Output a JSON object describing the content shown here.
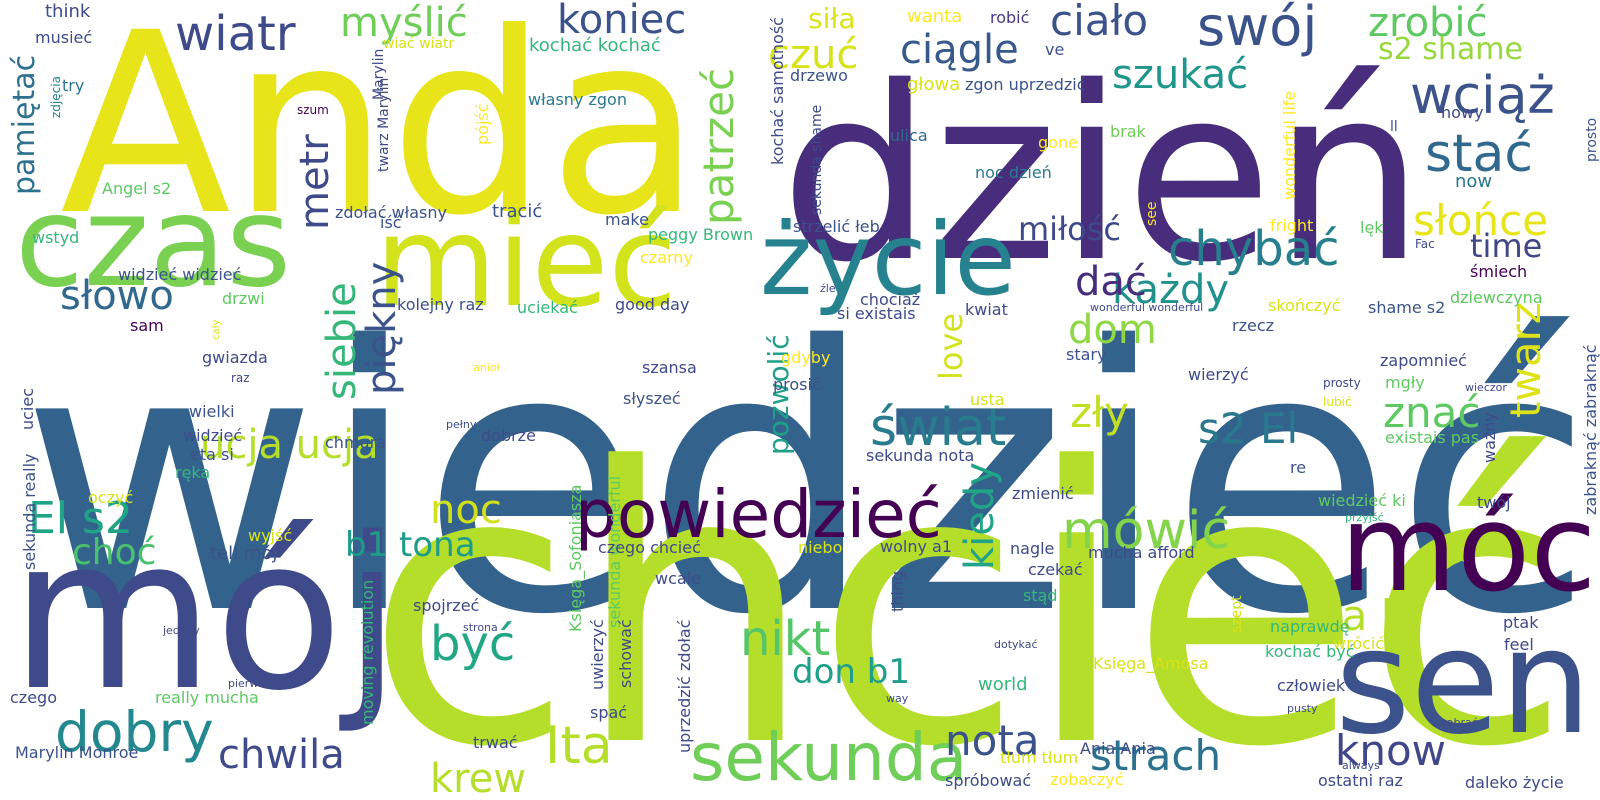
{
  "words": [
    {
      "t": "wiedzieć",
      "c": "#33638d"
    },
    {
      "t": "chcieć",
      "c": "#b5de2b"
    },
    {
      "t": "dzień",
      "c": "#472d7b"
    },
    {
      "t": "Anda",
      "c": "#e7e419"
    },
    {
      "t": "mój",
      "c": "#3e4a89"
    },
    {
      "t": "czas",
      "c": "#7ad151"
    },
    {
      "t": "mieć",
      "c": "#d2e21b"
    },
    {
      "t": "życie",
      "c": "#26828e"
    },
    {
      "t": "sen",
      "c": "#3b528b"
    },
    {
      "t": "móc",
      "c": "#440154"
    },
    {
      "t": "powiedzieć",
      "c": "#440154"
    },
    {
      "t": "sekunda",
      "c": "#6ece58"
    },
    {
      "t": "wiatr",
      "c": "#3e4a89"
    },
    {
      "t": "myślić",
      "c": "#6ece58"
    },
    {
      "t": "koniec",
      "c": "#3b528b"
    },
    {
      "t": "swój",
      "c": "#3b528b"
    },
    {
      "t": "zrobić",
      "c": "#5ec962"
    },
    {
      "t": "wciąż",
      "c": "#3b528b"
    },
    {
      "t": "stać",
      "c": "#31688e"
    },
    {
      "t": "słońce",
      "c": "#e7e419"
    },
    {
      "t": "twarz",
      "c": "#dde318"
    },
    {
      "t": "patrzeć",
      "c": "#7ad151"
    },
    {
      "t": "czuć",
      "c": "#d8e219"
    },
    {
      "t": "ciągle",
      "c": "#38598c"
    },
    {
      "t": "ciało",
      "c": "#3b528b"
    },
    {
      "t": "szukać",
      "c": "#1f968b"
    },
    {
      "t": "chybać",
      "c": "#277f8e"
    },
    {
      "t": "każdy",
      "c": "#21918c"
    },
    {
      "t": "time",
      "c": "#404688"
    },
    {
      "t": "miłość",
      "c": "#3e4a89"
    },
    {
      "t": "dać",
      "c": "#472d7b"
    },
    {
      "t": "świat",
      "c": "#287c8e"
    },
    {
      "t": "dom",
      "c": "#8fd744"
    },
    {
      "t": "zły",
      "c": "#c2df23"
    },
    {
      "t": "s2 El",
      "c": "#2a788e"
    },
    {
      "t": "znać",
      "c": "#5ec962"
    },
    {
      "t": "mówić",
      "c": "#84d44b"
    },
    {
      "t": "kiedy",
      "c": "#20a386"
    },
    {
      "t": "metr",
      "c": "#3e4a89"
    },
    {
      "t": "siebie",
      "c": "#35b779"
    },
    {
      "t": "piękny",
      "c": "#3b528b"
    },
    {
      "t": "słowo",
      "c": "#31688e"
    },
    {
      "t": "El s2",
      "c": "#20a486"
    },
    {
      "t": "ucja ucja",
      "c": "#b5de2b"
    },
    {
      "t": "noc",
      "c": "#d0e11c"
    },
    {
      "t": "być",
      "c": "#22a785"
    },
    {
      "t": "b1 tona",
      "c": "#1e9c89"
    },
    {
      "t": "choć",
      "c": "#4ac16d"
    },
    {
      "t": "dobry",
      "c": "#23898e"
    },
    {
      "t": "chwila",
      "c": "#3e4a89"
    },
    {
      "t": "krew",
      "c": "#b5de2b"
    },
    {
      "t": "Ita",
      "c": "#b5de2b"
    },
    {
      "t": "nikt",
      "c": "#54c568"
    },
    {
      "t": "don b1",
      "c": "#1f9e89"
    },
    {
      "t": "nota",
      "c": "#3b528b"
    },
    {
      "t": "strach",
      "c": "#2c728e"
    },
    {
      "t": "know",
      "c": "#404688"
    },
    {
      "t": "la la",
      "c": "#b5de2b"
    },
    {
      "t": "love",
      "c": "#d2e21b"
    },
    {
      "t": "pozwolić",
      "c": "#1fa088"
    },
    {
      "t": "pamiętać",
      "c": "#2d718e"
    },
    {
      "t": "s2 shame",
      "c": "#98d83e"
    },
    {
      "t": "siła",
      "c": "#dde318"
    },
    {
      "t": "wanta",
      "c": "#fde725"
    },
    {
      "t": "robić",
      "c": "#443a83"
    },
    {
      "t": "ve",
      "c": "#3b528b"
    },
    {
      "t": "think",
      "c": "#3e4a89"
    },
    {
      "t": "musieć",
      "c": "#3e4a89"
    },
    {
      "t": "try",
      "c": "#2a788e"
    },
    {
      "t": "zdjęcia",
      "c": "#26828e"
    },
    {
      "t": "wiać wiatr",
      "c": "#d8e219"
    },
    {
      "t": "Marylin",
      "c": "#3e4a89"
    },
    {
      "t": "kochać kochać",
      "c": "#35b779"
    },
    {
      "t": "kochać samotność",
      "c": "#3e4a89"
    },
    {
      "t": "drzewo",
      "c": "#3b528b"
    },
    {
      "t": "głowa",
      "c": "#d8e219"
    },
    {
      "t": "zgon uprzedzić",
      "c": "#3b528b"
    },
    {
      "t": "własny zgon",
      "c": "#2a788e"
    },
    {
      "t": "pójść",
      "c": "#fde725"
    },
    {
      "t": "szum",
      "c": "#440154"
    },
    {
      "t": "twarz Marylin",
      "c": "#3e4a89"
    },
    {
      "t": "iść",
      "c": "#3b528b"
    },
    {
      "t": "ulica",
      "c": "#31688e"
    },
    {
      "t": "gone",
      "c": "#fde725"
    },
    {
      "t": "brak",
      "c": "#6ece58"
    },
    {
      "t": "wonderful life",
      "c": "#fde725"
    },
    {
      "t": "prosto",
      "c": "#3b528b"
    },
    {
      "t": "ll",
      "c": "#3b528b"
    },
    {
      "t": "nowy",
      "c": "#3e4a89"
    },
    {
      "t": "noc dzień",
      "c": "#2a788e"
    },
    {
      "t": "sekunda shame",
      "c": "#3e4a89"
    },
    {
      "t": "now",
      "c": "#2a788e"
    },
    {
      "t": "Angel s2",
      "c": "#5ec962"
    },
    {
      "t": "zdołać własny",
      "c": "#3b528b"
    },
    {
      "t": "tracić",
      "c": "#3b528b"
    },
    {
      "t": "make",
      "c": "#3b528b"
    },
    {
      "t": "see",
      "c": "#fde725"
    },
    {
      "t": "strzelić łeb",
      "c": "#3b528b"
    },
    {
      "t": "fright",
      "c": "#fde725"
    },
    {
      "t": "lęk",
      "c": "#5ec962"
    },
    {
      "t": "Fac",
      "c": "#3e4a89"
    },
    {
      "t": "wstyd",
      "c": "#35b779"
    },
    {
      "t": "peggy Brown",
      "c": "#35b779"
    },
    {
      "t": "czarny",
      "c": "#fde725"
    },
    {
      "t": "śmiech",
      "c": "#440154"
    },
    {
      "t": "widzieć widzieć",
      "c": "#3b528b"
    },
    {
      "t": "drzwi",
      "c": "#5ec962"
    },
    {
      "t": "kolejny raz",
      "c": "#3b528b"
    },
    {
      "t": "uciekać",
      "c": "#35b779"
    },
    {
      "t": "good day",
      "c": "#3e4a89"
    },
    {
      "t": "chociaż",
      "c": "#3e4a89"
    },
    {
      "t": "si existais",
      "c": "#3e4a89"
    },
    {
      "t": "kwiat",
      "c": "#3e4a89"
    },
    {
      "t": "wonderful wonderful",
      "c": "#3e4a89"
    },
    {
      "t": "skończyć",
      "c": "#d8e219"
    },
    {
      "t": "dziewczyna",
      "c": "#5ec962"
    },
    {
      "t": "shame s2",
      "c": "#3b528b"
    },
    {
      "t": "sam",
      "c": "#440154"
    },
    {
      "t": "cały",
      "c": "#d8e219"
    },
    {
      "t": "rzecz",
      "c": "#3b528b"
    },
    {
      "t": "gwiazda",
      "c": "#3e4a89"
    },
    {
      "t": "szansa",
      "c": "#3e4a89"
    },
    {
      "t": "gdyby",
      "c": "#fde725"
    },
    {
      "t": "prosić",
      "c": "#3b528b"
    },
    {
      "t": "stary",
      "c": "#3b528b"
    },
    {
      "t": "zapomnieć",
      "c": "#3e4a89"
    },
    {
      "t": "mgły",
      "c": "#5ec962"
    },
    {
      "t": "anioł",
      "c": "#fde725"
    },
    {
      "t": "wieczor",
      "c": "#3e4a89"
    },
    {
      "t": "raz",
      "c": "#3e4a89"
    },
    {
      "t": "uciec",
      "c": "#3e4a89"
    },
    {
      "t": "Księga_Sofoniasza",
      "c": "#5ec962"
    },
    {
      "t": "sekunda wonderful",
      "c": "#5ec962"
    },
    {
      "t": "wierzyć",
      "c": "#3e4a89"
    },
    {
      "t": "prosty",
      "c": "#3e4a89"
    },
    {
      "t": "usta",
      "c": "#d8e219"
    },
    {
      "t": "lubić",
      "c": "#d8e219"
    },
    {
      "t": "wielki",
      "c": "#3b528b"
    },
    {
      "t": "słyszeć",
      "c": "#3b528b"
    },
    {
      "t": "widzieć",
      "c": "#3e4a89"
    },
    {
      "t": "pełny",
      "c": "#3e4a89"
    },
    {
      "t": "existais pas",
      "c": "#5ec962"
    },
    {
      "t": "sekunda really",
      "c": "#3b528b"
    },
    {
      "t": "eta si",
      "c": "#3b528b"
    },
    {
      "t": "dobrze",
      "c": "#3e4a89"
    },
    {
      "t": "chmura",
      "c": "#3b528b"
    },
    {
      "t": "sekunda nota",
      "c": "#3e4a89"
    },
    {
      "t": "ważny",
      "c": "#3e4a89"
    },
    {
      "t": "zabraknąć zabraknąć",
      "c": "#3b528b"
    },
    {
      "t": "re",
      "c": "#3b528b"
    },
    {
      "t": "ręka",
      "c": "#35b779"
    },
    {
      "t": "oczyć",
      "c": "#d8e219"
    },
    {
      "t": "wiedzieć ki",
      "c": "#5ec962"
    },
    {
      "t": "twój",
      "c": "#3e4a89"
    },
    {
      "t": "zmienić",
      "c": "#3e4a89"
    },
    {
      "t": "przyjść",
      "c": "#35b779"
    },
    {
      "t": "wyjść",
      "c": "#d8e219"
    },
    {
      "t": "tell mój",
      "c": "#3b528b"
    },
    {
      "t": "czego chcieć",
      "c": "#3e4a89"
    },
    {
      "t": "niebo",
      "c": "#d8e219"
    },
    {
      "t": "wolny a1",
      "c": "#3e4a89"
    },
    {
      "t": "nagle",
      "c": "#3e4a89"
    },
    {
      "t": "mucha afford",
      "c": "#3e4a89"
    },
    {
      "t": "czekać",
      "c": "#3e4a89"
    },
    {
      "t": "thing",
      "c": "#3e4a89"
    },
    {
      "t": "szept",
      "c": "#d8e219"
    },
    {
      "t": "wcale",
      "c": "#3e4a89"
    },
    {
      "t": "stąd",
      "c": "#35b779"
    },
    {
      "t": "spojrzeć",
      "c": "#3e4a89"
    },
    {
      "t": "jedyny",
      "c": "#3e4a89"
    },
    {
      "t": "strona",
      "c": "#3e4a89"
    },
    {
      "t": "uwierzyć",
      "c": "#3e4a89"
    },
    {
      "t": "schować",
      "c": "#3e4a89"
    },
    {
      "t": "uprzedzić zdołać",
      "c": "#3e4a89"
    },
    {
      "t": "moving revolution",
      "c": "#35b779"
    },
    {
      "t": "dotykać",
      "c": "#3e4a89"
    },
    {
      "t": "naprawdę",
      "c": "#35b779"
    },
    {
      "t": "wrócić",
      "c": "#d8e219"
    },
    {
      "t": "ptak",
      "c": "#3e4a89"
    },
    {
      "t": "feel",
      "c": "#3e4a89"
    },
    {
      "t": "kochać być",
      "c": "#35b779"
    },
    {
      "t": "Księga_Amosa",
      "c": "#d8e219"
    },
    {
      "t": "world",
      "c": "#35b779"
    },
    {
      "t": "człowiek",
      "c": "#3e4a89"
    },
    {
      "t": "pierwszy",
      "c": "#3e4a89"
    },
    {
      "t": "way",
      "c": "#3e4a89"
    },
    {
      "t": "czego",
      "c": "#3e4a89"
    },
    {
      "t": "really mucha",
      "c": "#5ec962"
    },
    {
      "t": "spać",
      "c": "#3e4a89"
    },
    {
      "t": "pusty",
      "c": "#3e4a89"
    },
    {
      "t": "zabrać",
      "c": "#3e4a89"
    },
    {
      "t": "Marylin Monroe",
      "c": "#3b528b"
    },
    {
      "t": "trwać",
      "c": "#3e4a89"
    },
    {
      "t": "tłum tłum",
      "c": "#d8e219"
    },
    {
      "t": "Ania Ania",
      "c": "#3e4a89"
    },
    {
      "t": "spróbować",
      "c": "#3e4a89"
    },
    {
      "t": "zobaczyć",
      "c": "#fde725"
    },
    {
      "t": "always",
      "c": "#3e4a89"
    },
    {
      "t": "ostatni raz",
      "c": "#3e4a89"
    },
    {
      "t": "daleko życie",
      "c": "#3e4a89"
    },
    {
      "t": "źle",
      "c": "#3e4a89"
    }
  ]
}
